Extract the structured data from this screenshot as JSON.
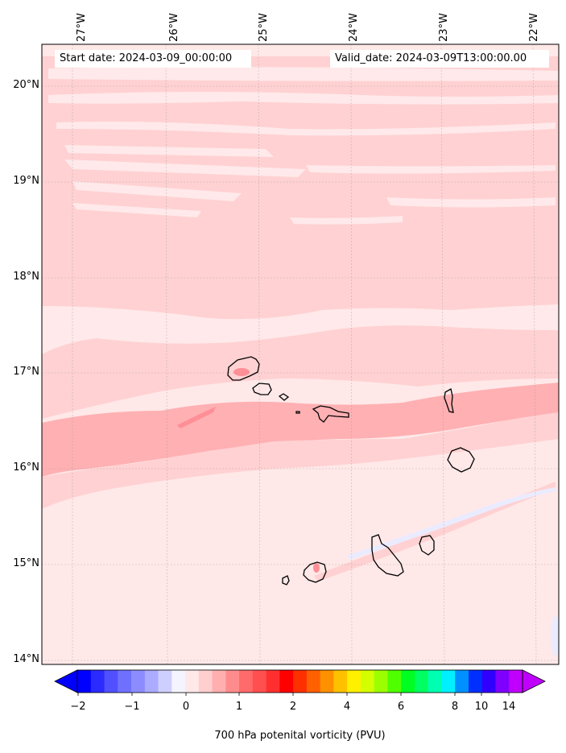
{
  "map": {
    "start_date": "Start date: 2024-03-09_00:00:00",
    "valid_date": "Valid_date: 2024-03-09T13:00:00.00",
    "lon_labels": [
      "27°W",
      "26°W",
      "25°W",
      "24°W",
      "23°W",
      "22°W"
    ],
    "lat_labels": [
      "20°N",
      "19°N",
      "18°N",
      "17°N",
      "16°N",
      "15°N",
      "14°N"
    ]
  },
  "colorbar": {
    "title": "700 hPa potenital vorticity (PVU)",
    "tick_labels": [
      "−2",
      "−1",
      "0",
      "1",
      "2",
      "4",
      "6",
      "8",
      "10",
      "14"
    ],
    "colors": [
      "#0000ff",
      "#2b2bff",
      "#5050ff",
      "#7070ff",
      "#8c8cff",
      "#ababff",
      "#cfcfff",
      "#f4f4ff",
      "#ffe8e8",
      "#ffcfcf",
      "#ffafaf",
      "#ff8c8c",
      "#ff6a6a",
      "#ff4f4f",
      "#ff2f2f",
      "#ff0000",
      "#ff3000",
      "#ff6000",
      "#ff9000",
      "#ffc000",
      "#fff000",
      "#d4ff00",
      "#9cff00",
      "#50ff00",
      "#00ff20",
      "#00ff60",
      "#00ffb0",
      "#00f0ff",
      "#0090ff",
      "#0030ff",
      "#3000ff",
      "#8000ff",
      "#c000ff"
    ]
  },
  "field_colors": {
    "background": "#ffe8e8",
    "pale": "#ffe9ea",
    "light": "#ffd1d2",
    "medium": "#ffb0b3",
    "strong": "#ff8f96",
    "blue_hint": "#ebebff",
    "coast": "#000000"
  }
}
